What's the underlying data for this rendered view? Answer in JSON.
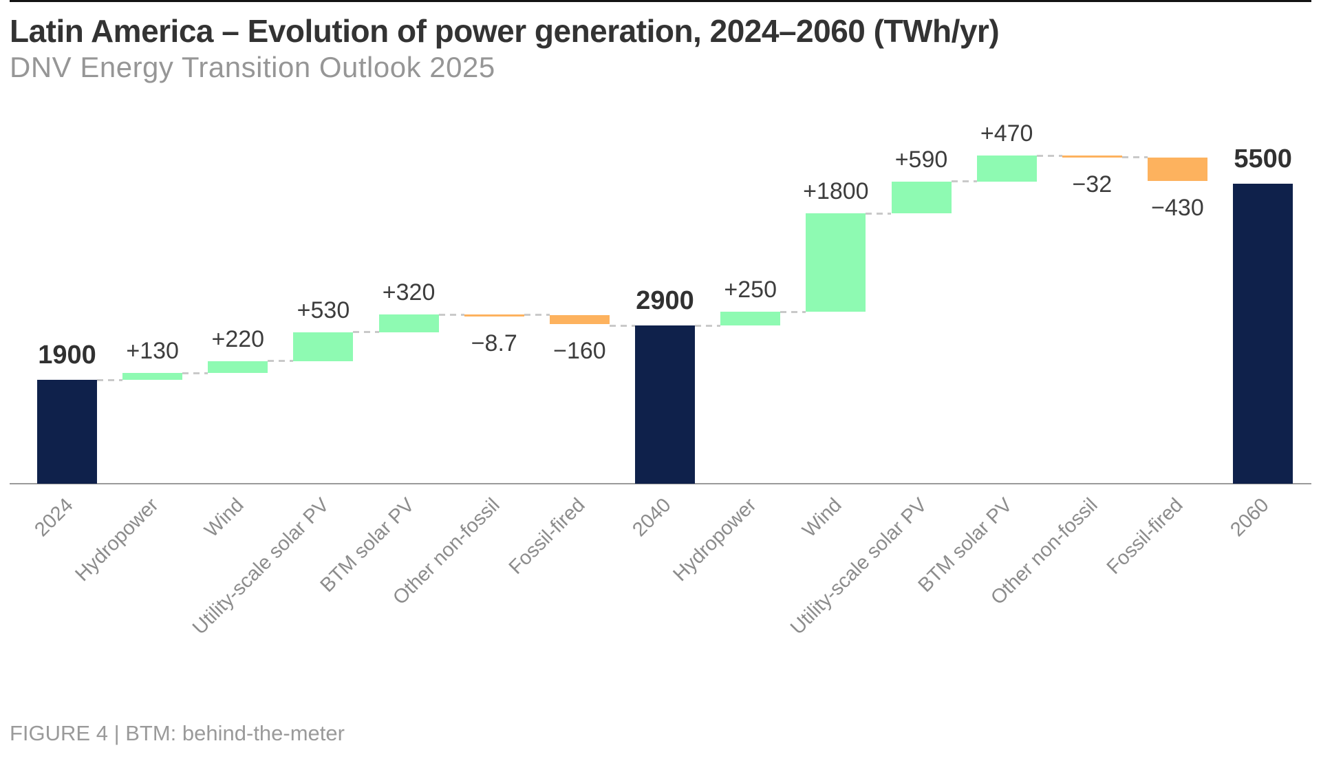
{
  "header": {
    "title": "Latin America – Evolution of power generation, 2024–2060 (TWh/yr)",
    "subtitle": "DNV Energy Transition Outlook 2025"
  },
  "footer": {
    "caption": "FIGURE 4 | BTM: behind-the-meter"
  },
  "colors": {
    "total_bar": "#0f214b",
    "increase_bar": "#8efab2",
    "decrease_bar": "#fdb25e",
    "connector": "#c9c9c9",
    "axis": "#9a9a9a",
    "title_text": "#333333",
    "subtitle_text": "#969696",
    "value_text": "#3d3d3d",
    "category_text": "#8c8c8c",
    "caption_text": "#9a9a9a"
  },
  "chart_data": {
    "type": "bar",
    "variant": "waterfall",
    "title": "Latin America – Evolution of power generation, 2024–2060 (TWh/yr)",
    "subtitle": "DNV Energy Transition Outlook 2025",
    "unit": "TWh/yr",
    "grid": false,
    "legend": false,
    "ylim": [
      0,
      6200
    ],
    "categories": [
      "2024",
      "Hydropower",
      "Wind",
      "Utility-scale solar PV",
      "BTM solar PV",
      "Other non-fossil",
      "Fossil-fired",
      "2040",
      "Hydropower",
      "Wind",
      "Utility-scale solar PV",
      "BTM solar PV",
      "Other non-fossil",
      "Fossil-fired",
      "2060"
    ],
    "bars": [
      {
        "category": "2024",
        "kind": "total",
        "value": 1900,
        "label": "1900",
        "connector_in": false
      },
      {
        "category": "Hydropower",
        "kind": "delta",
        "value": 130,
        "label": "+130",
        "connector_in": true
      },
      {
        "category": "Wind",
        "kind": "delta",
        "value": 220,
        "label": "+220",
        "connector_in": true
      },
      {
        "category": "Utility-scale solar PV",
        "kind": "delta",
        "value": 530,
        "label": "+530",
        "connector_in": true
      },
      {
        "category": "BTM solar PV",
        "kind": "delta",
        "value": 320,
        "label": "+320",
        "connector_in": true
      },
      {
        "category": "Other non-fossil",
        "kind": "delta",
        "value": -8.7,
        "label": "−8.7",
        "connector_in": true
      },
      {
        "category": "Fossil-fired",
        "kind": "delta",
        "value": -160,
        "label": "−160",
        "connector_in": true
      },
      {
        "category": "2040",
        "kind": "total",
        "value": 2900,
        "label": "2900",
        "connector_in": true
      },
      {
        "category": "Hydropower",
        "kind": "delta",
        "value": 250,
        "label": "+250",
        "connector_in": true
      },
      {
        "category": "Wind",
        "kind": "delta",
        "value": 1800,
        "label": "+1800",
        "connector_in": true
      },
      {
        "category": "Utility-scale solar PV",
        "kind": "delta",
        "value": 590,
        "label": "+590",
        "connector_in": true
      },
      {
        "category": "BTM solar PV",
        "kind": "delta",
        "value": 470,
        "label": "+470",
        "connector_in": true
      },
      {
        "category": "Other non-fossil",
        "kind": "delta",
        "value": -32,
        "label": "−32",
        "connector_in": true
      },
      {
        "category": "Fossil-fired",
        "kind": "delta",
        "value": -430,
        "label": "−430",
        "connector_in": true
      },
      {
        "category": "2060",
        "kind": "total",
        "value": 5500,
        "label": "5500",
        "connector_in": false
      }
    ]
  }
}
